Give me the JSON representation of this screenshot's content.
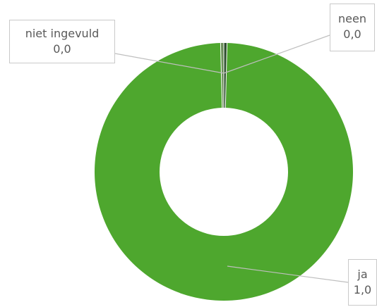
{
  "chart_data": {
    "type": "pie",
    "variant": "donut",
    "categories": [
      "ja",
      "neen",
      "niet ingevuld"
    ],
    "values": [
      1.0,
      0.0,
      0.0
    ],
    "value_labels": [
      "1,0",
      "0,0",
      "0,0"
    ],
    "colors": {
      "ja": "#4ea72e",
      "neen": "#2f4f2f",
      "niet ingevuld": "#6b8e5a",
      "separator": "#ffffff",
      "leader": "#bfbfbf"
    },
    "title": "",
    "legend": "none"
  }
}
